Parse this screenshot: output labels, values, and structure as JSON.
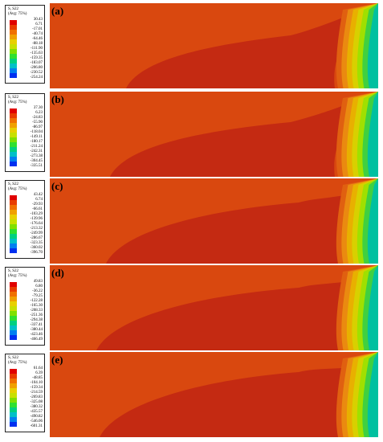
{
  "panels": [
    {
      "label": "(a)",
      "legend": {
        "title": "S, S22",
        "subtitle": "(Avg: 75%)",
        "values": [
          "30.43",
          "6.71",
          "-17.01",
          "-40.74",
          "-64.46",
          "-88.18",
          "-111.90",
          "-135.63",
          "-159.35",
          "-183.07",
          "-206.80",
          "-230.52",
          "-254.24"
        ]
      }
    },
    {
      "label": "(b)",
      "legend": {
        "title": "S, S22",
        "subtitle": "(Avg: 75%)",
        "values": [
          "37.30",
          "6.23",
          "-24.83",
          "-55.90",
          "-86.97",
          "-118.04",
          "-149.11",
          "-180.17",
          "-211.24",
          "-242.31",
          "-273.38",
          "-304.45",
          "-335.51"
        ]
      }
    },
    {
      "label": "(c)",
      "legend": {
        "title": "S, S22",
        "subtitle": "(Avg: 75%)",
        "values": [
          "43.42",
          "6.74",
          "-29.93",
          "-66.61",
          "-103.29",
          "-139.96",
          "-176.64",
          "-213.32",
          "-249.99",
          "-286.67",
          "-323.35",
          "-360.02",
          "-396.70"
        ]
      }
    },
    {
      "label": "(d)",
      "legend": {
        "title": "S, S22",
        "subtitle": "(Avg: 75%)",
        "values": [
          "49.83",
          "6.80",
          "-36.22",
          "-79.25",
          "-122.28",
          "-165.30",
          "-208.33",
          "-251.36",
          "-294.38",
          "-337.41",
          "-380.44",
          "-423.46",
          "-466.49"
        ]
      }
    },
    {
      "label": "(e)",
      "legend": {
        "title": "S, S22",
        "subtitle": "(Avg: 75%)",
        "values": [
          "61.64",
          "6.39",
          "-48.85",
          "-104.10",
          "-159.34",
          "-214.59",
          "-269.83",
          "-325.08",
          "-380.32",
          "-435.57",
          "-490.82",
          "-546.06",
          "-601.31"
        ]
      }
    }
  ],
  "colors": {
    "background_field": "#d9480f",
    "low_stress_lobe": "#c42a12",
    "scale": [
      "#e00000",
      "#e83c00",
      "#f07000",
      "#f0a000",
      "#e8d000",
      "#c8e000",
      "#80e000",
      "#30e030",
      "#00d080",
      "#00c0c8",
      "#0080f0",
      "#0030f0",
      "#0000d0"
    ]
  }
}
